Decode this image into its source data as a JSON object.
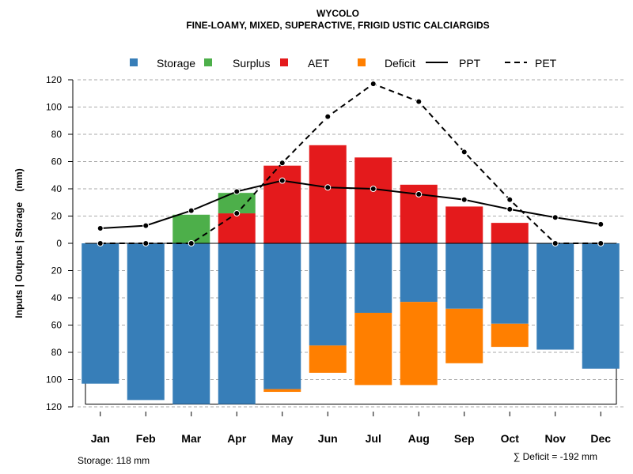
{
  "chart_data": {
    "type": "bar",
    "title": "WYCOLO",
    "subtitle": "FINE-LOAMY, MIXED, SUPERACTIVE, FRIGID USTIC CALCIARGIDS",
    "ylabel": "Inputs | Outputs | Storage    (mm)",
    "ylim": [
      -120,
      120
    ],
    "yticks": [
      -120,
      -100,
      -80,
      -60,
      -40,
      -20,
      0,
      20,
      40,
      60,
      80,
      100,
      120
    ],
    "ytick_labels": [
      "120",
      "100",
      "80",
      "60",
      "40",
      "20",
      "0",
      "20",
      "40",
      "60",
      "80",
      "100",
      "120"
    ],
    "grid": true,
    "legend_position": "top",
    "categories": [
      "Jan",
      "Feb",
      "Mar",
      "Apr",
      "May",
      "Jun",
      "Jul",
      "Aug",
      "Sep",
      "Oct",
      "Nov",
      "Dec"
    ],
    "legend": [
      {
        "name": "Storage",
        "kind": "box",
        "color": "#377EB8"
      },
      {
        "name": "Surplus",
        "kind": "box",
        "color": "#4DAF4A"
      },
      {
        "name": "AET",
        "kind": "box",
        "color": "#E41A1C"
      },
      {
        "name": "Deficit",
        "kind": "box",
        "color": "#FF7F00"
      },
      {
        "name": "PPT",
        "kind": "solid",
        "color": "#000000"
      },
      {
        "name": "PET",
        "kind": "dashed",
        "color": "#000000"
      }
    ],
    "storage_capacity": 118,
    "series": [
      {
        "name": "Storage",
        "color": "#377EB8",
        "values": [
          103,
          115,
          118,
          118,
          107,
          75,
          51,
          43,
          48,
          59,
          78,
          92
        ]
      },
      {
        "name": "Surplus",
        "color": "#4DAF4A",
        "base": "AET",
        "values": [
          0,
          0,
          21,
          15,
          0,
          0,
          0,
          0,
          0,
          0,
          0,
          0
        ]
      },
      {
        "name": "AET",
        "color": "#E41A1C",
        "values": [
          0,
          0,
          0,
          22,
          57,
          72,
          63,
          43,
          27,
          15,
          0,
          0
        ]
      },
      {
        "name": "Deficit",
        "color": "#FF7F00",
        "base": "Storage",
        "values": [
          0,
          0,
          0,
          0,
          2,
          20,
          53,
          61,
          40,
          17,
          0,
          0
        ]
      },
      {
        "name": "PPT",
        "color": "#000000",
        "line": "solid",
        "values": [
          11,
          13,
          24,
          38,
          46,
          41,
          40,
          36,
          32,
          25,
          19,
          14
        ]
      },
      {
        "name": "PET",
        "color": "#000000",
        "line": "dashed",
        "values": [
          0,
          0,
          0,
          22,
          59,
          93,
          117,
          104,
          67,
          32,
          0,
          0
        ]
      }
    ],
    "annotations": {
      "storage_note": "Storage: 118 mm",
      "deficit_note": "∑ Deficit = -192 mm"
    }
  }
}
